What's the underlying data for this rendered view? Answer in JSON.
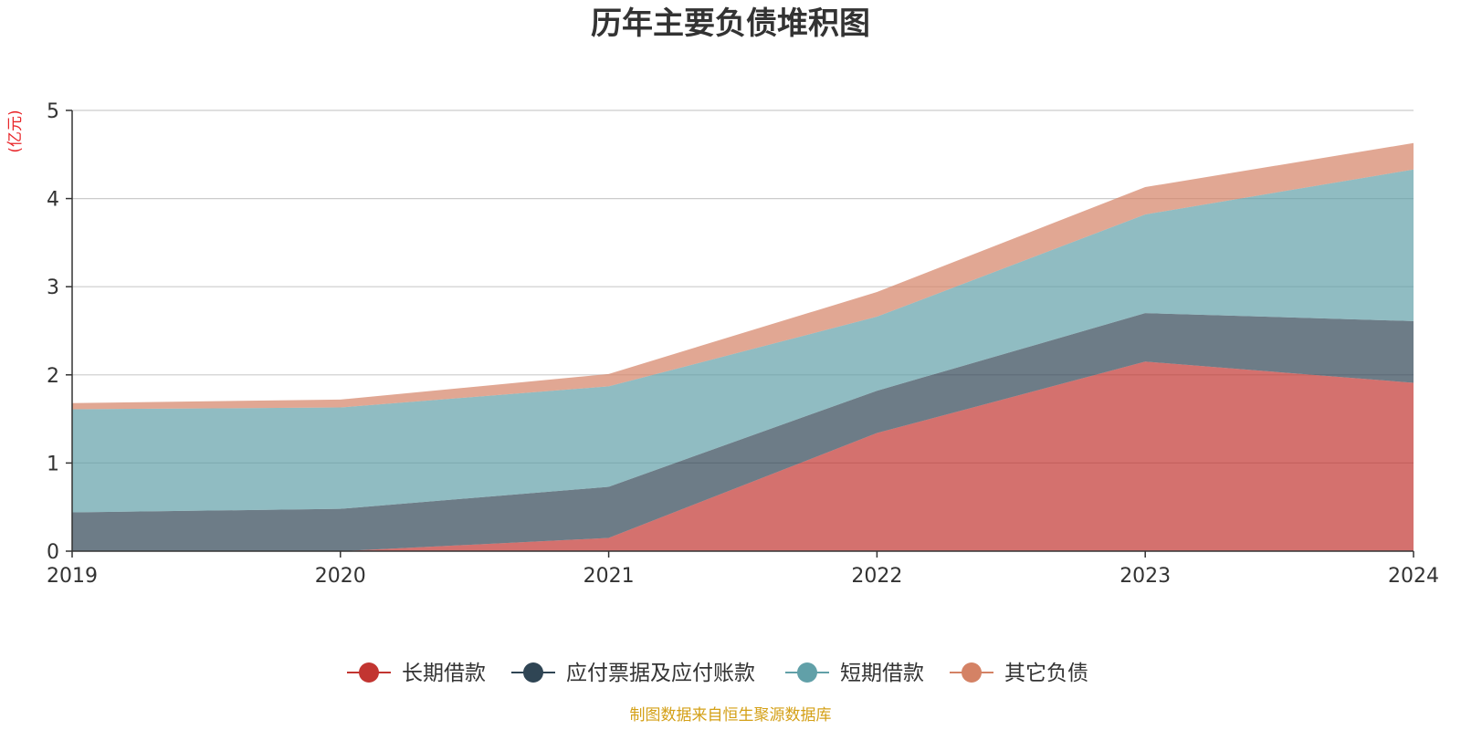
{
  "chart_data": {
    "type": "area",
    "stacked": true,
    "title": "历年主要负债堆积图",
    "unit_label": "(亿元)",
    "x": [
      "2019",
      "2020",
      "2021",
      "2022",
      "2023",
      "2024"
    ],
    "ylim": [
      0,
      5
    ],
    "yticks": [
      "0",
      "1",
      "2",
      "3",
      "4",
      "5"
    ],
    "grid": true,
    "legend_position": "bottom",
    "series": [
      {
        "name": "长期借款",
        "color": "#c23531",
        "values": [
          0.0,
          0.0,
          0.15,
          1.34,
          2.15,
          1.91
        ]
      },
      {
        "name": "应付票据及应付账款",
        "color": "#2f4554",
        "values": [
          0.44,
          0.48,
          0.58,
          0.48,
          0.55,
          0.7
        ]
      },
      {
        "name": "短期借款",
        "color": "#61a0a8",
        "values": [
          1.17,
          1.15,
          1.14,
          0.84,
          1.12,
          1.72
        ]
      },
      {
        "name": "其它负债",
        "color": "#d48265",
        "values": [
          0.07,
          0.09,
          0.14,
          0.28,
          0.31,
          0.3
        ]
      }
    ]
  },
  "source_text": "制图数据来自恒生聚源数据库",
  "colors": {
    "unit": "#e8262a",
    "source": "#d4a017",
    "axis": "#333333",
    "grid": "#cccccc"
  }
}
